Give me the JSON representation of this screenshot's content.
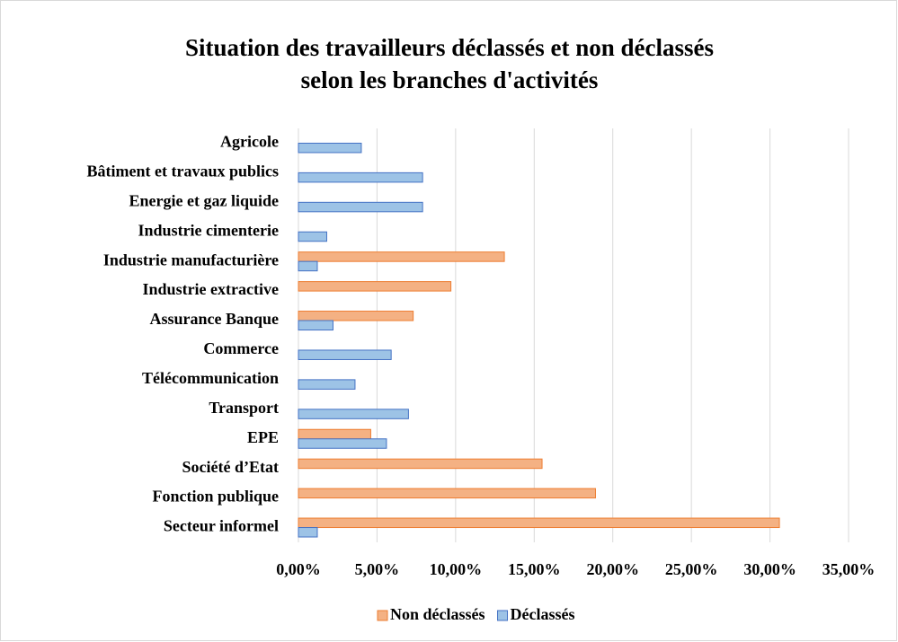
{
  "chart_data": {
    "type": "hbar",
    "title": [
      "Situation des travailleurs déclassés et non déclassés",
      "selon les branches d'activités"
    ],
    "categories": [
      "Agricole",
      "Bâtiment et travaux publics",
      "Energie et gaz liquide",
      "Industrie cimenterie",
      "Industrie manufacturière",
      "Industrie extractive",
      "Assurance Banque",
      "Commerce",
      "Télécommunication",
      "Transport",
      "EPE",
      "Société d’Etat",
      "Fonction publique",
      "Secteur informel"
    ],
    "series": [
      {
        "name": "Non déclassés",
        "color": "#f4b183",
        "stroke": "#ed7d31",
        "values": [
          null,
          null,
          null,
          null,
          13.1,
          9.7,
          7.3,
          null,
          null,
          null,
          4.6,
          15.5,
          18.9,
          30.6
        ]
      },
      {
        "name": "Déclassés",
        "color": "#9dc3e6",
        "stroke": "#4472c4",
        "values": [
          4.0,
          7.9,
          7.9,
          1.8,
          1.2,
          null,
          2.2,
          5.9,
          3.6,
          7.0,
          5.6,
          null,
          null,
          1.2
        ]
      }
    ],
    "xlim": [
      0,
      35
    ],
    "xticks": [
      {
        "value": 0,
        "label": "0,00%"
      },
      {
        "value": 5,
        "label": "5,00%"
      },
      {
        "value": 10,
        "label": "10,00%"
      },
      {
        "value": 15,
        "label": "15,00%"
      },
      {
        "value": 20,
        "label": "20,00%"
      },
      {
        "value": 25,
        "label": "25,00%"
      },
      {
        "value": 30,
        "label": "30,00%"
      },
      {
        "value": 35,
        "label": "35,00%"
      }
    ],
    "grid": true,
    "legend": "bottom"
  }
}
